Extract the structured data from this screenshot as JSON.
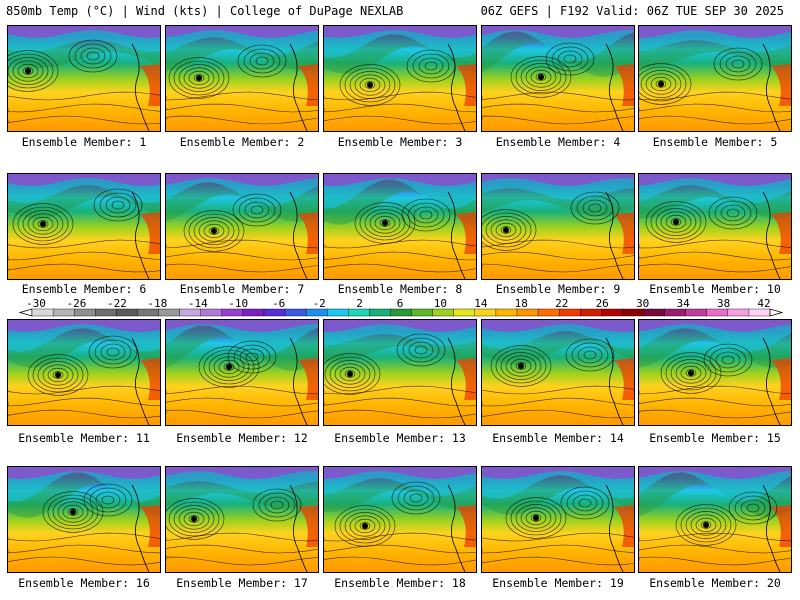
{
  "header": {
    "left": "850mb Temp (°C) | Wind (kts) | College of DuPage NEXLAB",
    "right": "06Z GEFS | F192 Valid: 06Z TUE SEP 30 2025"
  },
  "members": [
    "Ensemble Member: 1",
    "Ensemble Member: 2",
    "Ensemble Member: 3",
    "Ensemble Member: 4",
    "Ensemble Member: 5",
    "Ensemble Member: 6",
    "Ensemble Member: 7",
    "Ensemble Member: 8",
    "Ensemble Member: 9",
    "Ensemble Member: 10",
    "Ensemble Member: 11",
    "Ensemble Member: 12",
    "Ensemble Member: 13",
    "Ensemble Member: 14",
    "Ensemble Member: 15",
    "Ensemble Member: 16",
    "Ensemble Member: 17",
    "Ensemble Member: 18",
    "Ensemble Member: 19",
    "Ensemble Member: 20"
  ],
  "colorbar": {
    "ticks": [
      "-30",
      "-26",
      "-22",
      "-18",
      "-14",
      "-10",
      "-6",
      "-2",
      "2",
      "6",
      "10",
      "14",
      "18",
      "22",
      "26",
      "30",
      "34",
      "38",
      "42"
    ],
    "colors": [
      "#d9d9d9",
      "#b5b5b5",
      "#8f8f8f",
      "#6e6e6e",
      "#5a5a5a",
      "#777777",
      "#999999",
      "#c4a9e0",
      "#b07ad6",
      "#9b3fd0",
      "#7a1fc0",
      "#5b2bd6",
      "#3a5be0",
      "#1e8ff0",
      "#19c7f0",
      "#1fd6b8",
      "#19b07a",
      "#2a9a3a",
      "#5fb82a",
      "#9fd21e",
      "#e6e619",
      "#ffd21e",
      "#ffb400",
      "#ff9600",
      "#ff6e00",
      "#f03c00",
      "#d21e00",
      "#b40000",
      "#8c0000",
      "#780a3c",
      "#9b1e6e",
      "#c33ca0",
      "#e66ec8",
      "#f5a0e0",
      "#ffd2f5"
    ]
  }
}
